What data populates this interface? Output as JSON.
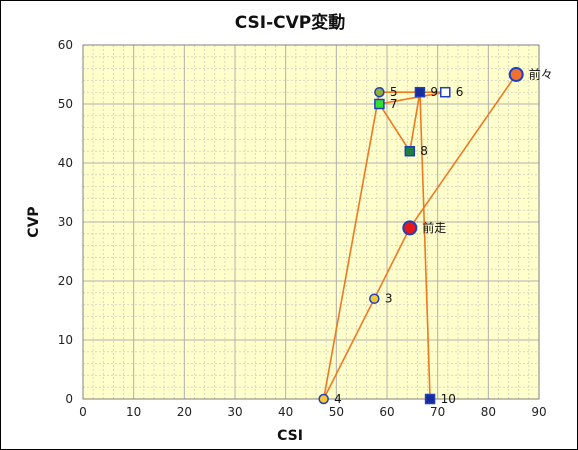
{
  "chart_data": {
    "type": "scatter",
    "title": "CSI-CVP変動",
    "xlabel": "CSI",
    "ylabel": "CVP",
    "xlim": [
      0,
      90
    ],
    "ylim": [
      0,
      60
    ],
    "xticks": [
      "0",
      "10",
      "20",
      "30",
      "40",
      "50",
      "60",
      "70",
      "80",
      "90"
    ],
    "yticks": [
      "0",
      "10",
      "20",
      "30",
      "40",
      "50",
      "60"
    ],
    "grid": true,
    "colors": {
      "plot_bg": "#ffffcc",
      "grid_major": "#b0b0b0",
      "grid_minor": "#d8d8c0",
      "line": "#f07820",
      "circle_edge": "#1f3fbf"
    },
    "points": [
      {
        "label": "前々",
        "x": 85.5,
        "y": 55,
        "marker": "circle",
        "fill": "#f07030",
        "size": "large"
      },
      {
        "label": "前走",
        "x": 64.5,
        "y": 29,
        "marker": "circle",
        "fill": "#e81818",
        "size": "large"
      },
      {
        "label": "3",
        "x": 57.5,
        "y": 17,
        "marker": "circle",
        "fill": "#f6c833",
        "size": "small"
      },
      {
        "label": "4",
        "x": 47.5,
        "y": 0,
        "marker": "circle",
        "fill": "#f6c833",
        "size": "small"
      },
      {
        "label": "5",
        "x": 58.5,
        "y": 52,
        "marker": "circle",
        "fill": "#8fb030",
        "size": "small"
      },
      {
        "label": "6",
        "x": 71.5,
        "y": 52,
        "marker": "square",
        "fill": "#ffffff",
        "size": "small"
      },
      {
        "label": "7",
        "x": 58.5,
        "y": 50,
        "marker": "square",
        "fill": "#30e030",
        "size": "small"
      },
      {
        "label": "8",
        "x": 64.5,
        "y": 42,
        "marker": "square",
        "fill": "#1e8040",
        "size": "small"
      },
      {
        "label": "9",
        "x": 66.5,
        "y": 52,
        "marker": "square",
        "fill": "#1a2a9a",
        "size": "small"
      },
      {
        "label": "10",
        "x": 68.5,
        "y": 0,
        "marker": "square",
        "fill": "#1a2a9a",
        "size": "small"
      }
    ],
    "path_order": [
      "10",
      "9",
      "8",
      "7",
      "6",
      "5",
      "4",
      "3",
      "前走",
      "前々"
    ]
  }
}
